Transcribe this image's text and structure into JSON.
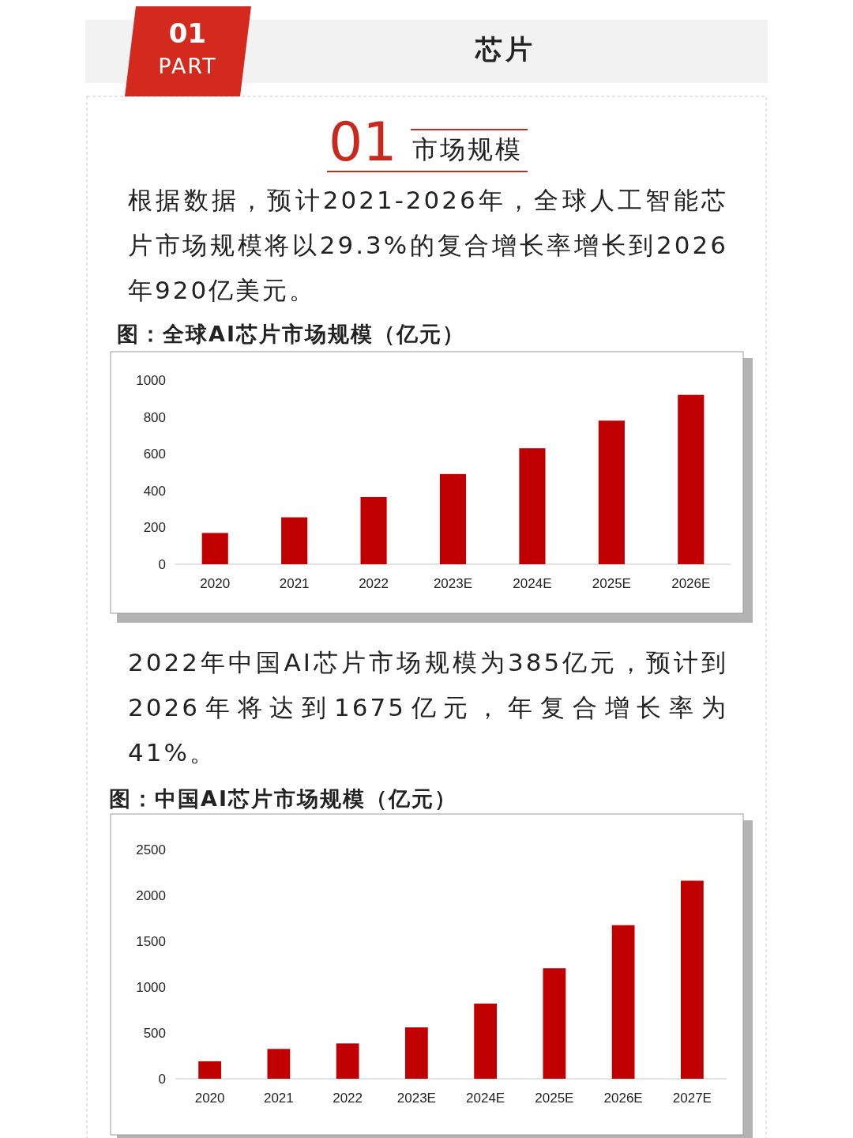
{
  "chart_data": [
    {
      "type": "bar",
      "title": "图：全球AI芯片市场规模（亿元）",
      "categories": [
        "2020",
        "2021",
        "2022",
        "2023E",
        "2024E",
        "2025E",
        "2026E"
      ],
      "values": [
        170,
        255,
        365,
        490,
        630,
        780,
        920
      ],
      "color": "#c00000",
      "ylim": [
        0,
        1000
      ],
      "yticks": [
        0,
        200,
        400,
        600,
        800,
        1000
      ],
      "annotations": [
        "01",
        "PART",
        "芯片",
        "01",
        "市场规模",
        "根据数据，预计2021-2026年，全球人工智能芯片市场规模将以29.3%的复合增长率增长到2026年920亿美元。"
      ]
    },
    {
      "type": "bar",
      "title": "图：中国AI芯片市场规模（亿元）",
      "categories": [
        "2020",
        "2021",
        "2022",
        "2023E",
        "2024E",
        "2025E",
        "2026E",
        "2027E"
      ],
      "values": [
        190,
        325,
        385,
        560,
        820,
        1205,
        1675,
        2160
      ],
      "color": "#c00000",
      "ylim": [
        0,
        2500
      ],
      "yticks": [
        0,
        500,
        1000,
        1500,
        2000,
        2500
      ],
      "annotations": [
        "2022年中国AI芯片市场规模为385亿元，预计到2026年将达到1675亿元，年复合增长率为41%。"
      ]
    }
  ]
}
